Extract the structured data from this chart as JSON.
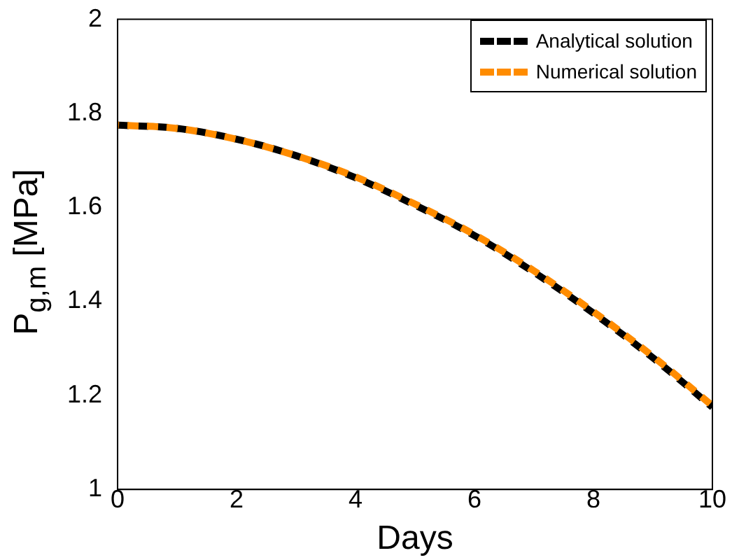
{
  "chart_data": {
    "type": "line",
    "xlabel": "Days",
    "ylabel": "P$_{g,m}$ [MPa]",
    "x": [
      0,
      1,
      2,
      3,
      4,
      5,
      6,
      7,
      8,
      9,
      10
    ],
    "series": [
      {
        "name": "Analytical solution",
        "color": "#000000",
        "values": [
          1.775,
          1.768,
          1.745,
          1.71,
          1.663,
          1.605,
          1.54,
          1.462,
          1.375,
          1.28,
          1.175
        ]
      },
      {
        "name": "Numerical solution",
        "color": "#ff8c00",
        "values": [
          1.775,
          1.768,
          1.745,
          1.71,
          1.665,
          1.607,
          1.542,
          1.465,
          1.378,
          1.283,
          1.178
        ]
      }
    ],
    "xlim": [
      0,
      10
    ],
    "xticks": [
      0,
      2,
      4,
      6,
      8,
      10
    ],
    "ylim": [
      1,
      2
    ],
    "yticks": [
      1,
      1.2,
      1.4,
      1.6,
      1.8,
      2
    ],
    "grid": false,
    "legend": "top right",
    "marker": "none",
    "line_style": "dashed"
  }
}
